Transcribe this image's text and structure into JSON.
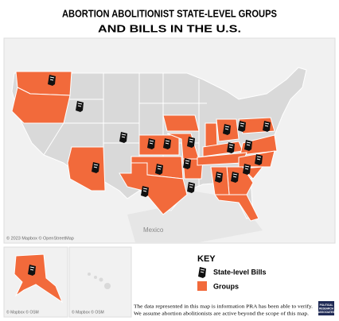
{
  "header": {
    "title": [
      "ABORTION ABOLITIONIST STATE-LEVEL GROUPS",
      "AND BILLS IN THE U.S."
    ]
  },
  "map": {
    "attribution": "© 2023 Mapbox © OpenStreetMap",
    "label": "Mexico"
  },
  "insets": {
    "alaska_attribution": "© Mapbox © OSM",
    "hawaii_attribution": "© Mapbox © OSM"
  },
  "key": {
    "title": "KEY",
    "items": [
      "State-level Bills",
      "Groups"
    ]
  },
  "footnote": [
    "The data represented in this map is information PRA has been able to verify.",
    "We assume abortion abolitionists are active beyond the scope of this map."
  ],
  "logo": [
    "POLITICAL",
    "RESEARCH",
    "ASSOCIATES"
  ]
}
